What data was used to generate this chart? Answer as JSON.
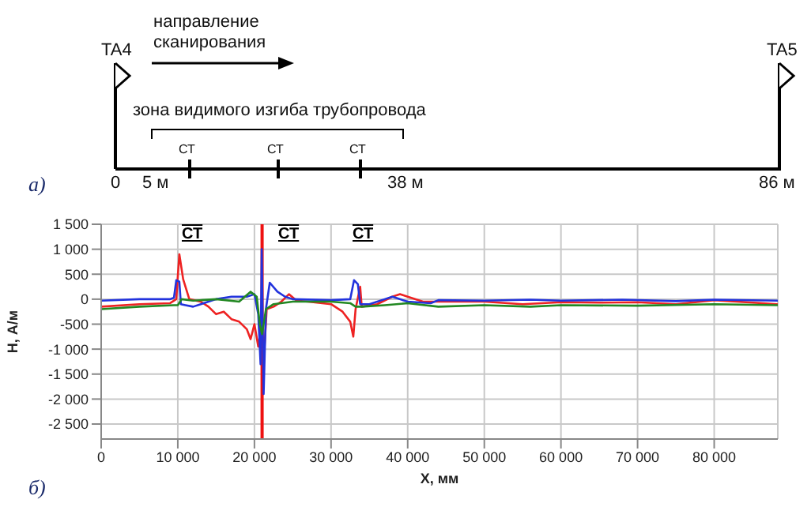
{
  "chart_data": [
    {
      "type": "other",
      "annotations": [
        "TA4",
        "TA5",
        "направление сканирования",
        "зона видимого изгиба трубопровода",
        "СТ",
        "СТ",
        "СТ",
        "0",
        "5 м",
        "38 м",
        "86 м",
        "а)"
      ]
    },
    {
      "type": "line",
      "xlabel": "X, мм",
      "ylabel": "H, А/м",
      "xlim": [
        0,
        88300
      ],
      "ylim": [
        -2800,
        1500
      ],
      "xticks": [
        0,
        {
          "value": 10000,
          "label": "10 000"
        },
        {
          "value": 20000,
          "label": "20 000"
        },
        {
          "value": 30000,
          "label": "30 000"
        },
        {
          "value": 40000,
          "label": "40 000"
        },
        {
          "value": 50000,
          "label": "50 000"
        },
        {
          "value": 60000,
          "label": "60 000"
        },
        {
          "value": 70000,
          "label": "70 000"
        },
        {
          "value": 80000,
          "label": "80 000"
        }
      ],
      "yticks": [
        {
          "value": -2500,
          "label": "-2 500"
        },
        {
          "value": -2000,
          "label": "-2 000"
        },
        {
          "value": -1500,
          "label": "-1 500"
        },
        {
          "value": -1000,
          "label": "-1 000"
        },
        -500,
        0,
        500,
        {
          "value": 1000,
          "label": "1 000"
        },
        {
          "value": 1500,
          "label": "1 500"
        }
      ],
      "grid": true,
      "marker": "none",
      "line_style": "solid",
      "series": [
        {
          "color": "#ee2222",
          "x": [
            0,
            5000,
            9000,
            9800,
            10200,
            10700,
            11500,
            13000,
            14000,
            15000,
            16000,
            17000,
            18000,
            19000,
            19500,
            20000,
            20500,
            20900,
            21300,
            21600,
            22500,
            23500,
            24500,
            25500,
            27000,
            30000,
            31500,
            32500,
            32900,
            33200,
            33800,
            34000,
            36000,
            38000,
            39000,
            40000,
            42000,
            45000,
            50000,
            55000,
            60000,
            65000,
            70000,
            75000,
            80000,
            88300
          ],
          "values": [
            -150,
            -100,
            -80,
            0,
            900,
            400,
            0,
            -50,
            -150,
            -300,
            -250,
            -400,
            -450,
            -600,
            -800,
            -500,
            -950,
            -500,
            -1000,
            -200,
            -150,
            -50,
            100,
            -30,
            -50,
            -100,
            -250,
            -450,
            -750,
            -200,
            250,
            -150,
            -100,
            50,
            100,
            50,
            -50,
            -50,
            -50,
            -100,
            -60,
            -70,
            -60,
            -100,
            -20,
            -100
          ]
        },
        {
          "color": "#2233dd",
          "x": [
            0,
            5000,
            9000,
            9500,
            9800,
            10200,
            10400,
            11000,
            12000,
            13000,
            15000,
            17000,
            19000,
            20000,
            20500,
            20800,
            20950,
            21200,
            21500,
            22000,
            23000,
            24000,
            25000,
            30000,
            32500,
            33000,
            33500,
            33800,
            35000,
            37000,
            38000,
            40000,
            43000,
            44000,
            50000,
            56000,
            60000,
            68000,
            75000,
            80000,
            88300
          ],
          "values": [
            -30,
            0,
            0,
            30,
            380,
            350,
            -100,
            -120,
            -150,
            -100,
            0,
            50,
            50,
            100,
            -300,
            -1300,
            1000,
            -1900,
            -200,
            330,
            150,
            50,
            0,
            -20,
            0,
            380,
            300,
            -100,
            -100,
            0,
            50,
            -50,
            -80,
            -20,
            -30,
            -10,
            -30,
            -10,
            -40,
            -10,
            -30
          ]
        },
        {
          "color": "#228822",
          "x": [
            0,
            5000,
            9500,
            10000,
            10500,
            12000,
            15000,
            18000,
            19500,
            20300,
            20700,
            21000,
            21500,
            22500,
            25000,
            30000,
            32500,
            33200,
            34000,
            37000,
            40000,
            44000,
            50000,
            56000,
            60000,
            70000,
            80000,
            88300
          ],
          "values": [
            -200,
            -150,
            -120,
            -120,
            0,
            -30,
            0,
            -50,
            150,
            50,
            -500,
            -700,
            -200,
            -100,
            -50,
            -50,
            -80,
            -150,
            -150,
            -120,
            -80,
            -150,
            -120,
            -150,
            -120,
            -130,
            -100,
            -120
          ]
        }
      ],
      "ref_lines": [
        {
          "axis": "x",
          "value": 21000,
          "color": "#ee1111"
        }
      ],
      "annotations": [
        "СТ",
        "СТ",
        "СТ",
        "б)"
      ]
    }
  ]
}
